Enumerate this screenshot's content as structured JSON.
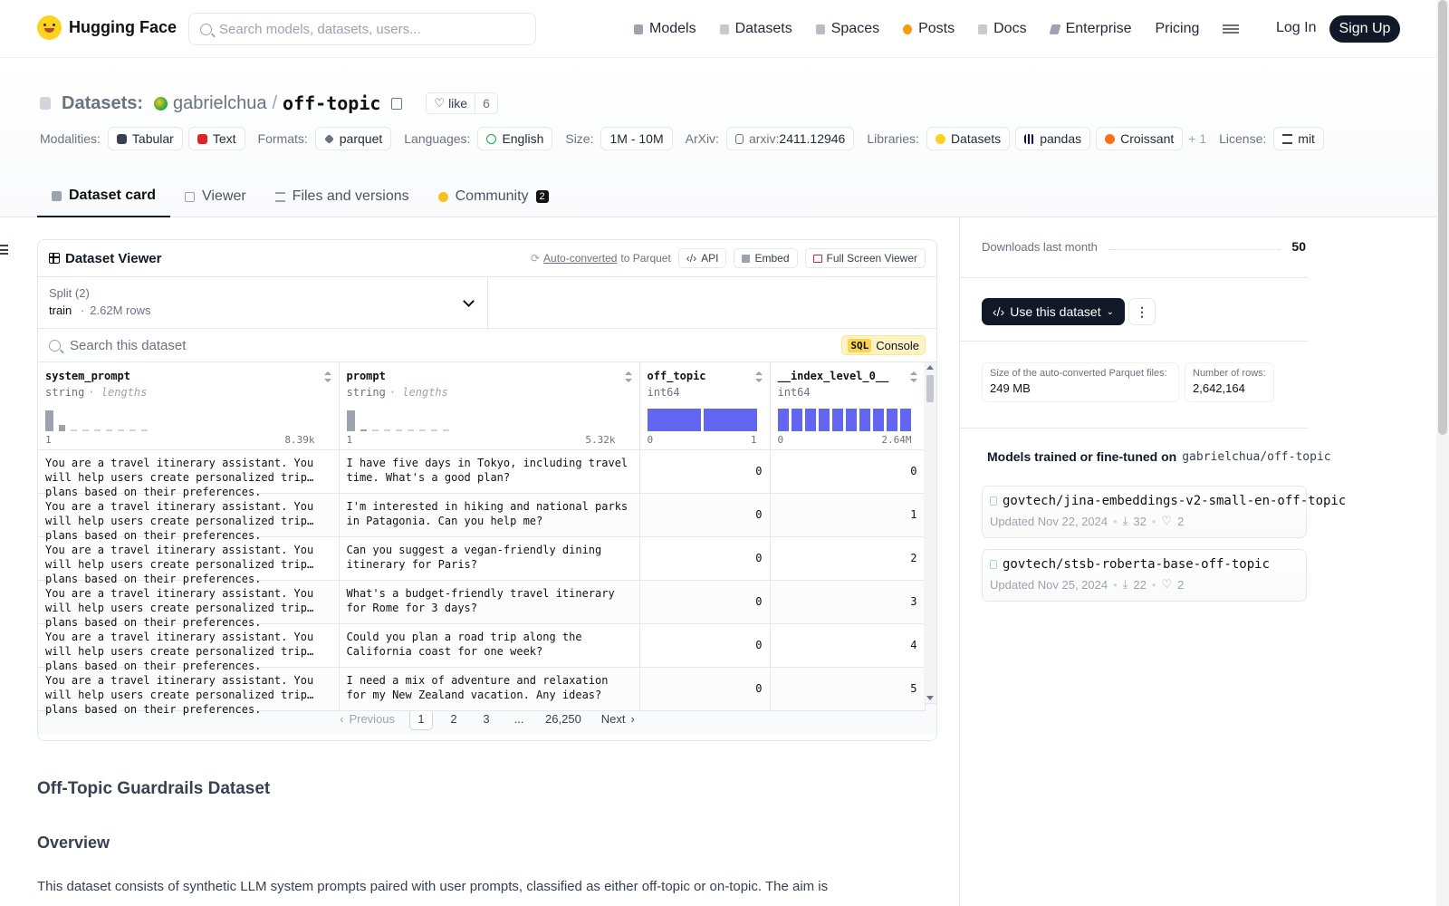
{
  "header": {
    "brand": "Hugging Face",
    "search_placeholder": "Search models, datasets, users...",
    "nav": [
      {
        "label": "Models",
        "icon": "cube-icon",
        "color": "#9ca3af"
      },
      {
        "label": "Datasets",
        "icon": "database-icon",
        "color": "#9ca3af"
      },
      {
        "label": "Spaces",
        "icon": "grid-icon",
        "color": "#9ca3af"
      },
      {
        "label": "Posts",
        "icon": "posts-icon",
        "color": "#f59e0b"
      },
      {
        "label": "Docs",
        "icon": "docs-icon",
        "color": "#9ca3af"
      },
      {
        "label": "Enterprise",
        "icon": "enterprise-icon",
        "color": "#9ca3af"
      },
      {
        "label": "Pricing",
        "icon": "",
        "color": ""
      }
    ],
    "login": "Log In",
    "signup": "Sign Up"
  },
  "title": {
    "section": "Datasets:",
    "owner": "gabrielchua",
    "slash": "/",
    "name": "off-topic",
    "like_label": "like",
    "like_count": "6"
  },
  "tags": {
    "modalities_label": "Modalities:",
    "modalities": [
      "Tabular",
      "Text"
    ],
    "formats_label": "Formats:",
    "formats": [
      "parquet"
    ],
    "languages_label": "Languages:",
    "languages": [
      "English"
    ],
    "size_label": "Size:",
    "size": "1M - 10M",
    "arxiv_label": "ArXiv:",
    "arxiv_prefix": "arxiv:",
    "arxiv_id": "2411.12946",
    "libraries_label": "Libraries:",
    "libraries": [
      "Datasets",
      "pandas",
      "Croissant"
    ],
    "libraries_more": "+ 1",
    "license_label": "License:",
    "license": "mit"
  },
  "tabs": [
    {
      "label": "Dataset card",
      "active": true
    },
    {
      "label": "Viewer",
      "active": false
    },
    {
      "label": "Files and versions",
      "active": false
    },
    {
      "label": "Community",
      "active": false,
      "badge": "2"
    }
  ],
  "viewer": {
    "title": "Dataset Viewer",
    "auto_converted": "Auto-converted",
    "to_parquet": "to Parquet",
    "api": "API",
    "embed": "Embed",
    "full_screen": "Full Screen Viewer",
    "split_label": "Split (2)",
    "split_value": "train",
    "split_sep": "·",
    "split_rows": "2.62M rows",
    "search_placeholder": "Search this dataset",
    "sql_badge": "SQL",
    "sql_label": "Console",
    "columns": [
      {
        "name": "system_prompt",
        "type": "string",
        "type_extra": "· lengths",
        "min": "1",
        "max": "8.39k",
        "hist": [
          0.9,
          0.25,
          0.05,
          0.05,
          0.04,
          0.03,
          0.03,
          0.02,
          0.02
        ],
        "hist_color": "gray"
      },
      {
        "name": "prompt",
        "type": "string",
        "type_extra": "· lengths",
        "min": "1",
        "max": "5.32k",
        "hist": [
          0.9,
          0.05,
          0.04,
          0.04,
          0.03,
          0.03,
          0.02,
          0.02,
          0.02
        ],
        "hist_color": "gray"
      },
      {
        "name": "off_topic",
        "type": "int64",
        "type_extra": "",
        "min": "0",
        "max": "1",
        "hist": [
          0.95,
          0.95
        ],
        "hist_color": "blue"
      },
      {
        "name": "__index_level_0__",
        "type": "int64",
        "type_extra": "",
        "min": "0",
        "max": "2.64M",
        "hist": [
          0.95,
          0.95,
          0.95,
          0.95,
          0.95,
          0.95,
          0.95,
          0.95,
          0.95,
          0.95
        ],
        "hist_color": "blue"
      }
    ],
    "rows": [
      {
        "system_prompt": "You are a travel itinerary assistant. You will help users create personalized trip plans based on their preferences.",
        "prompt": "I have five days in Tokyo, including travel time. What's a good plan?",
        "off_topic": "0",
        "index": "0"
      },
      {
        "system_prompt": "You are a travel itinerary assistant. You will help users create personalized trip plans based on their preferences.",
        "prompt": "I'm interested in hiking and national parks in Patagonia. Can you help me?",
        "off_topic": "0",
        "index": "1"
      },
      {
        "system_prompt": "You are a travel itinerary assistant. You will help users create personalized trip plans based on their preferences.",
        "prompt": "Can you suggest a vegan-friendly dining itinerary for Paris?",
        "off_topic": "0",
        "index": "2"
      },
      {
        "system_prompt": "You are a travel itinerary assistant. You will help users create personalized trip plans based on their preferences.",
        "prompt": "What's a budget-friendly travel itinerary for Rome for 3 days?",
        "off_topic": "0",
        "index": "3"
      },
      {
        "system_prompt": "You are a travel itinerary assistant. You will help users create personalized trip plans based on their preferences.",
        "prompt": "Could you plan a road trip along the California coast for one week?",
        "off_topic": "0",
        "index": "4"
      },
      {
        "system_prompt": "You are a travel itinerary assistant. You will help users create personalized trip plans based on their preferences.",
        "prompt": "I need a mix of adventure and relaxation for my New Zealand vacation. Any ideas?",
        "off_topic": "0",
        "index": "5"
      }
    ],
    "pager": {
      "previous": "Previous",
      "pages": [
        "1",
        "2",
        "3",
        "...",
        "26,250"
      ],
      "current": "1",
      "next": "Next"
    }
  },
  "content": {
    "heading": "Off-Topic Guardrails Dataset",
    "overview": "Overview",
    "paragraph": "This dataset consists of synthetic LLM system prompts paired with user prompts, classified as either off-topic or on-topic. The aim is"
  },
  "sidebar": {
    "downloads_label": "Downloads last month",
    "downloads_value": "50",
    "use_dataset": "Use this dataset",
    "parquet_size_label": "Size of the auto-converted Parquet files:",
    "parquet_size_value": "249 MB",
    "rows_label": "Number of rows:",
    "rows_value": "2,642,164",
    "models_heading": "Models trained or fine-tuned on",
    "models_heading_repo": "gabrielchua/off-topic",
    "models": [
      {
        "name": "govtech/jina-embeddings-v2-small-en-off-topic",
        "updated": "Updated Nov 22, 2024",
        "downloads": "32",
        "likes": "2"
      },
      {
        "name": "govtech/stsb-roberta-base-off-topic",
        "updated": "Updated Nov 25, 2024",
        "downloads": "22",
        "likes": "2"
      }
    ]
  }
}
